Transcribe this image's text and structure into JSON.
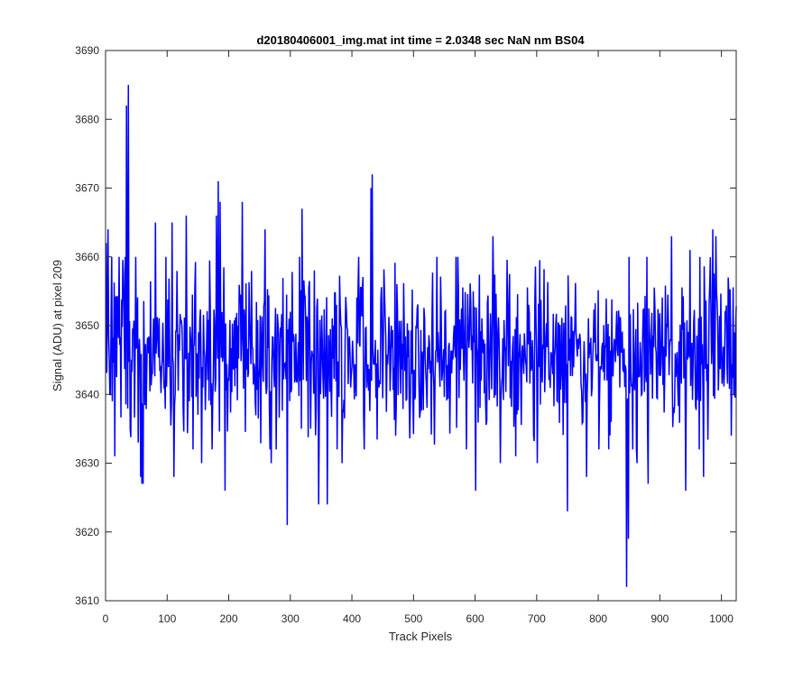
{
  "chart_data": {
    "type": "line",
    "title": "d20180406001_img.mat int time = 2.0348 sec  NaN nm BS04",
    "xlabel": "Track Pixels",
    "ylabel": "Signal (ADU) at pixel 209",
    "xlim": [
      0,
      1024
    ],
    "ylim": [
      3610,
      3690
    ],
    "xticks": [
      0,
      100,
      200,
      300,
      400,
      500,
      600,
      700,
      800,
      900,
      1000
    ],
    "yticks": [
      3610,
      3620,
      3630,
      3640,
      3650,
      3660,
      3670,
      3680,
      3690
    ],
    "grid": false,
    "legend": "none",
    "series_color": "#0000ff",
    "baseline": 3646,
    "noise_sigma": 6,
    "num_points": 1024,
    "features": [
      {
        "x": 0,
        "y": 3662
      },
      {
        "x": 3,
        "y": 3664
      },
      {
        "x": 6,
        "y": 3640
      },
      {
        "x": 9,
        "y": 3660
      },
      {
        "x": 14,
        "y": 3631
      },
      {
        "x": 33,
        "y": 3682
      },
      {
        "x": 36,
        "y": 3685
      },
      {
        "x": 39,
        "y": 3635
      },
      {
        "x": 52,
        "y": 3633
      },
      {
        "x": 56,
        "y": 3628
      },
      {
        "x": 58,
        "y": 3627
      },
      {
        "x": 60,
        "y": 3627
      },
      {
        "x": 80,
        "y": 3665
      },
      {
        "x": 107,
        "y": 3665
      },
      {
        "x": 110,
        "y": 3628
      },
      {
        "x": 130,
        "y": 3666
      },
      {
        "x": 155,
        "y": 3630
      },
      {
        "x": 172,
        "y": 3632
      },
      {
        "x": 179,
        "y": 3666
      },
      {
        "x": 182,
        "y": 3671
      },
      {
        "x": 185,
        "y": 3668
      },
      {
        "x": 193,
        "y": 3626
      },
      {
        "x": 221,
        "y": 3668
      },
      {
        "x": 258,
        "y": 3664
      },
      {
        "x": 268,
        "y": 3630
      },
      {
        "x": 294,
        "y": 3621
      },
      {
        "x": 318,
        "y": 3667
      },
      {
        "x": 332,
        "y": 3635
      },
      {
        "x": 345,
        "y": 3624
      },
      {
        "x": 359,
        "y": 3624
      },
      {
        "x": 383,
        "y": 3630
      },
      {
        "x": 410,
        "y": 3660
      },
      {
        "x": 430,
        "y": 3670
      },
      {
        "x": 432,
        "y": 3672
      },
      {
        "x": 470,
        "y": 3634
      },
      {
        "x": 568,
        "y": 3660
      },
      {
        "x": 585,
        "y": 3632
      },
      {
        "x": 600,
        "y": 3626
      },
      {
        "x": 628,
        "y": 3663
      },
      {
        "x": 640,
        "y": 3630
      },
      {
        "x": 665,
        "y": 3631
      },
      {
        "x": 700,
        "y": 3630
      },
      {
        "x": 749,
        "y": 3623
      },
      {
        "x": 780,
        "y": 3628
      },
      {
        "x": 820,
        "y": 3636
      },
      {
        "x": 845,
        "y": 3612
      },
      {
        "x": 848,
        "y": 3619
      },
      {
        "x": 862,
        "y": 3630
      },
      {
        "x": 880,
        "y": 3627
      },
      {
        "x": 918,
        "y": 3663
      },
      {
        "x": 941,
        "y": 3626
      },
      {
        "x": 948,
        "y": 3661
      },
      {
        "x": 970,
        "y": 3628
      },
      {
        "x": 985,
        "y": 3664
      },
      {
        "x": 990,
        "y": 3663
      },
      {
        "x": 1010,
        "y": 3657
      },
      {
        "x": 1015,
        "y": 3634
      }
    ]
  }
}
